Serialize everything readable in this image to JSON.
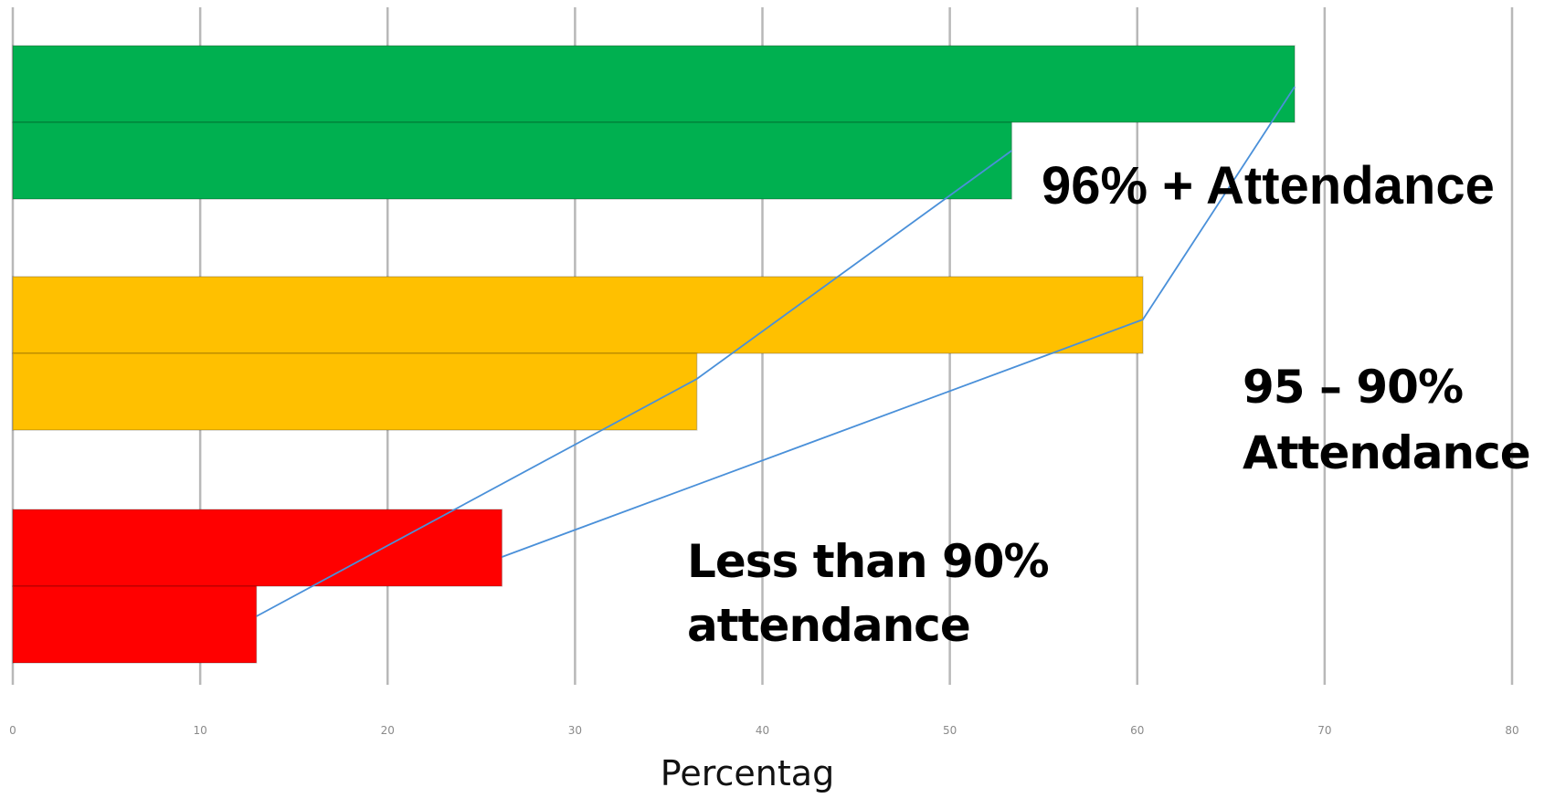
{
  "chart_data": {
    "type": "bar",
    "orientation": "horizontal",
    "xlabel": "Percentag",
    "xlim": [
      0,
      80
    ],
    "x_ticks": [
      0,
      10,
      20,
      30,
      40,
      50,
      60,
      70,
      80
    ],
    "grid": "vertical",
    "groups": [
      {
        "label": "96% + Attendance",
        "color": "#00b050",
        "values": [
          68.4,
          53.3
        ]
      },
      {
        "label": "95 – 90% Attendance",
        "color": "#ffc000",
        "values": [
          60.3,
          36.5
        ]
      },
      {
        "label": "Less than 90% attendance",
        "color": "#ff0000",
        "values": [
          26.1,
          13.0
        ]
      }
    ],
    "lines": [
      {
        "color": "#4a90d9",
        "points": [
          68.4,
          60.3,
          26.1
        ]
      },
      {
        "color": "#4a90d9",
        "points": [
          53.3,
          36.5,
          13.0
        ]
      }
    ]
  }
}
